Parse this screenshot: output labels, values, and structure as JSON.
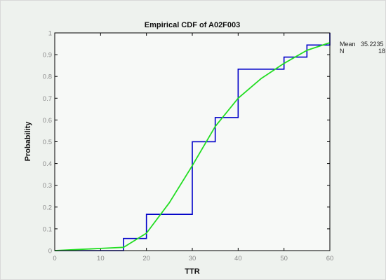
{
  "chart_data": {
    "type": "line",
    "title": "Empirical CDF of A02F003",
    "xlabel": "TTR",
    "ylabel": "Probability",
    "xlim": [
      0,
      60
    ],
    "ylim": [
      0,
      1
    ],
    "x_ticks": [
      "0",
      "10",
      "20",
      "30",
      "40",
      "50",
      "60"
    ],
    "y_ticks": [
      "0",
      "0.1",
      "0.2",
      "0.3",
      "0.4",
      "0.5",
      "0.6",
      "0.7",
      "0.8",
      "0.9",
      "1"
    ],
    "grid": false,
    "series": [
      {
        "kind": "step",
        "color": "#0000c8",
        "x": [
          15,
          20,
          30,
          35,
          40,
          50,
          55,
          60
        ],
        "y": [
          0.0556,
          0.1667,
          0.5,
          0.6111,
          0.8333,
          0.8889,
          0.9444,
          1.0
        ]
      },
      {
        "kind": "smooth",
        "color": "#22dd22",
        "x": [
          0,
          5,
          10,
          15,
          20,
          25,
          30,
          35,
          40,
          45,
          50,
          55,
          60
        ],
        "y": [
          0.0,
          0.005,
          0.01,
          0.015,
          0.08,
          0.22,
          0.39,
          0.57,
          0.7,
          0.79,
          0.86,
          0.92,
          0.955
        ]
      }
    ],
    "stats": {
      "mean_label": "Mean",
      "mean_value": "35.2235",
      "n_label": "N",
      "n_value": "18"
    }
  }
}
